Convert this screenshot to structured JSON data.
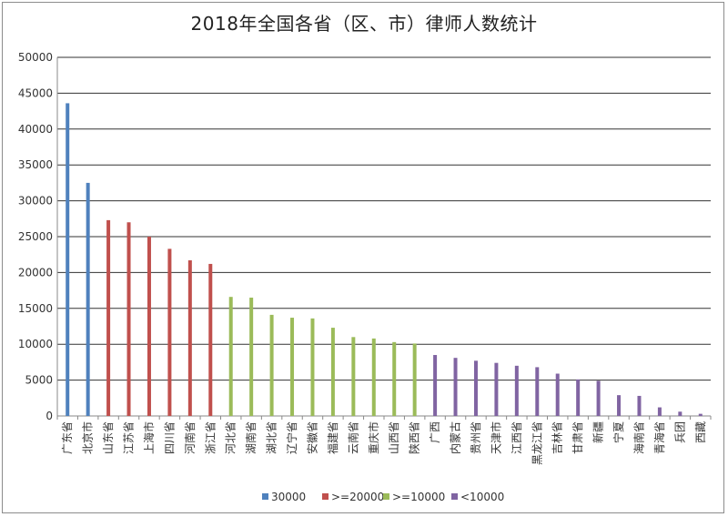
{
  "chart_data": {
    "type": "bar",
    "title": "2018年全国各省（区、市）律师人数统计",
    "ylim": [
      0,
      50000
    ],
    "yticks": [
      0,
      5000,
      10000,
      15000,
      20000,
      25000,
      30000,
      35000,
      40000,
      45000,
      50000
    ],
    "grid": true,
    "legend_position": "bottom",
    "categories": [
      "广东省",
      "北京市",
      "山东省",
      "江苏省",
      "上海市",
      "四川省",
      "河南省",
      "浙江省",
      "河北省",
      "湖南省",
      "湖北省",
      "辽宁省",
      "安徽省",
      "福建省",
      "云南省",
      "重庆市",
      "山西省",
      "陕西省",
      "广西",
      "内蒙古",
      "贵州省",
      "天津市",
      "江西省",
      "黑龙江省",
      "吉林省",
      "甘肃省",
      "新疆",
      "宁夏",
      "海南省",
      "青海省",
      "兵团",
      "西藏"
    ],
    "values": [
      43600,
      32500,
      27300,
      27000,
      25000,
      23300,
      21700,
      21200,
      16600,
      16500,
      14100,
      13700,
      13600,
      12300,
      11000,
      10800,
      10300,
      10100,
      8500,
      8100,
      7700,
      7400,
      7000,
      6800,
      5900,
      5100,
      4900,
      2900,
      2800,
      1200,
      600,
      300
    ],
    "groups": [
      0,
      0,
      1,
      1,
      1,
      1,
      1,
      1,
      2,
      2,
      2,
      2,
      2,
      2,
      2,
      2,
      2,
      2,
      3,
      3,
      3,
      3,
      3,
      3,
      3,
      3,
      3,
      3,
      3,
      3,
      3,
      3
    ],
    "series": [
      {
        "name": "30000",
        "color": "#4f81bd"
      },
      {
        "name": ">=20000",
        "color": "#c0504d"
      },
      {
        "name": ">=10000",
        "color": "#9bbb59"
      },
      {
        "name": "<10000",
        "color": "#8064a2"
      }
    ]
  }
}
